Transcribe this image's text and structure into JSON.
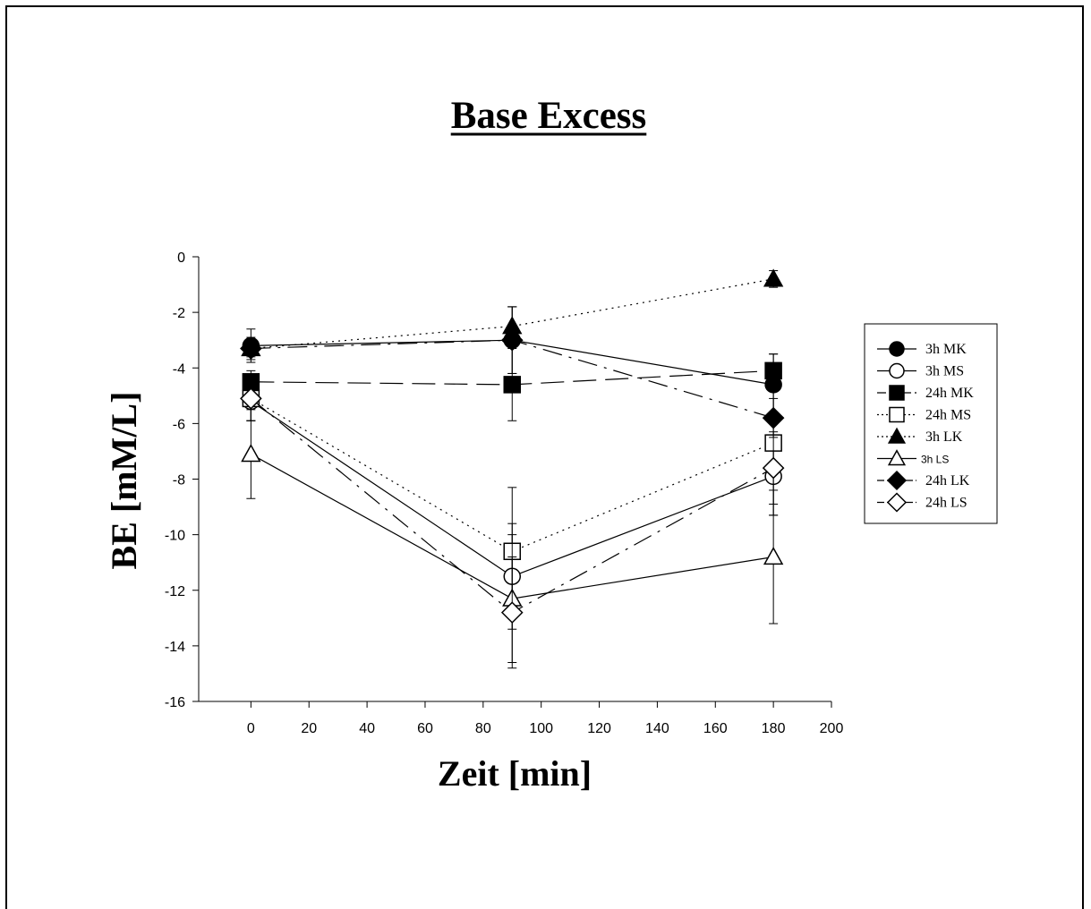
{
  "chart_data": {
    "type": "line",
    "title": "Base Excess",
    "xlabel": "Zeit [min]",
    "ylabel": "BE [mM/L]",
    "xlim": [
      -18,
      200
    ],
    "ylim": [
      -16,
      0
    ],
    "x_ticks": [
      0,
      20,
      40,
      60,
      80,
      100,
      120,
      140,
      160,
      180,
      200
    ],
    "y_ticks": [
      0,
      -2,
      -4,
      -6,
      -8,
      -10,
      -12,
      -14,
      -16
    ],
    "x": [
      0,
      90,
      180
    ],
    "legend_position": "right",
    "grid": false,
    "series": [
      {
        "name": "3h MK",
        "values": [
          -3.2,
          -3.0,
          -4.6
        ],
        "err": [
          0.6,
          1.2,
          1.1
        ],
        "marker": "circle",
        "fill": "filled",
        "dash": "solid"
      },
      {
        "name": "3h MS",
        "values": [
          -5.2,
          -11.5,
          -7.9
        ],
        "err": [
          0.7,
          1.9,
          1.4
        ],
        "marker": "circle",
        "fill": "open",
        "dash": "solid"
      },
      {
        "name": "24h MK",
        "values": [
          -4.5,
          -4.6,
          -4.1
        ],
        "err": [
          0.4,
          1.3,
          0.6
        ],
        "marker": "square",
        "fill": "filled",
        "dash": "longdash"
      },
      {
        "name": "24h MS",
        "values": [
          -5.1,
          -10.6,
          -6.7
        ],
        "err": [
          0.8,
          2.3,
          2.6
        ],
        "marker": "square",
        "fill": "open",
        "dash": "dotted"
      },
      {
        "name": "3h LK",
        "values": [
          -3.3,
          -2.5,
          -0.8
        ],
        "err": [
          0.3,
          0.7,
          0.3
        ],
        "marker": "triangle",
        "fill": "filled",
        "dash": "dotted"
      },
      {
        "name": "3h LS",
        "values": [
          -7.1,
          -12.3,
          -10.8
        ],
        "err": [
          1.6,
          2.3,
          2.4
        ],
        "marker": "triangle",
        "fill": "open",
        "dash": "solid"
      },
      {
        "name": "24h LK",
        "values": [
          -3.3,
          -3.0,
          -5.8
        ],
        "err": [
          0.4,
          1.2,
          0.7
        ],
        "marker": "diamond",
        "fill": "filled",
        "dash": "dashdot"
      },
      {
        "name": "24h LS",
        "values": [
          -5.1,
          -12.8,
          -7.6
        ],
        "err": [
          0.8,
          2.0,
          1.3
        ],
        "marker": "diamond",
        "fill": "open",
        "dash": "dashdot"
      }
    ]
  }
}
